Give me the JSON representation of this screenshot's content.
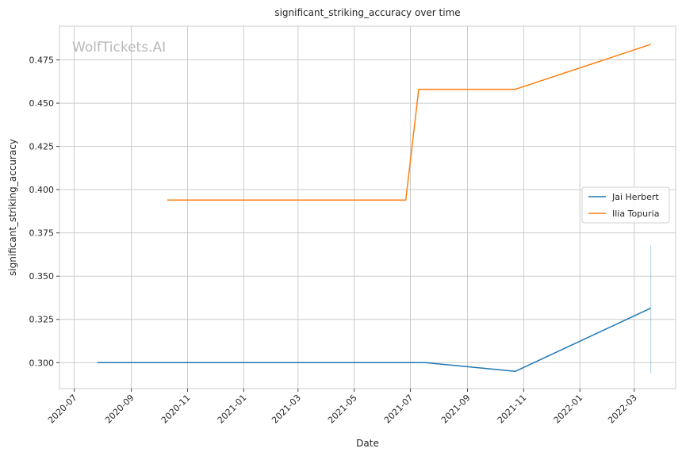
{
  "chart_data": {
    "type": "line",
    "title": "significant_striking_accuracy over time",
    "xlabel": "Date",
    "ylabel": "significant_striking_accuracy",
    "watermark": "WolfTickets.AI",
    "grid": true,
    "legend_position": "center-right",
    "xlim": [
      "2020-06-15",
      "2022-04-15"
    ],
    "ylim": [
      0.285,
      0.4945
    ],
    "x_ticks": [
      "2020-07",
      "2020-09",
      "2020-11",
      "2021-01",
      "2021-03",
      "2021-05",
      "2021-07",
      "2021-09",
      "2021-11",
      "2022-01",
      "2022-03"
    ],
    "y_ticks": [
      "0.300",
      "0.325",
      "0.350",
      "0.375",
      "0.400",
      "0.425",
      "0.450",
      "0.475"
    ],
    "series": [
      {
        "name": "Jai Herbert",
        "color": "#1f77b4",
        "points": [
          {
            "x": "2020-07-26",
            "y": 0.3
          },
          {
            "x": "2021-07-17",
            "y": 0.3
          },
          {
            "x": "2021-10-23",
            "y": 0.295
          },
          {
            "x": "2022-03-19",
            "y": 0.3315
          }
        ]
      },
      {
        "name": "Ilia Topuria",
        "color": "#ff7f0e",
        "points": [
          {
            "x": "2020-10-10",
            "y": 0.394
          },
          {
            "x": "2021-06-26",
            "y": 0.394
          },
          {
            "x": "2021-07-10",
            "y": 0.458
          },
          {
            "x": "2021-10-23",
            "y": 0.458
          },
          {
            "x": "2022-03-19",
            "y": 0.484
          }
        ]
      }
    ],
    "error_band": {
      "x": "2022-03-19",
      "y_low": 0.294,
      "y_high": 0.368,
      "color": "#1f77b4"
    }
  }
}
